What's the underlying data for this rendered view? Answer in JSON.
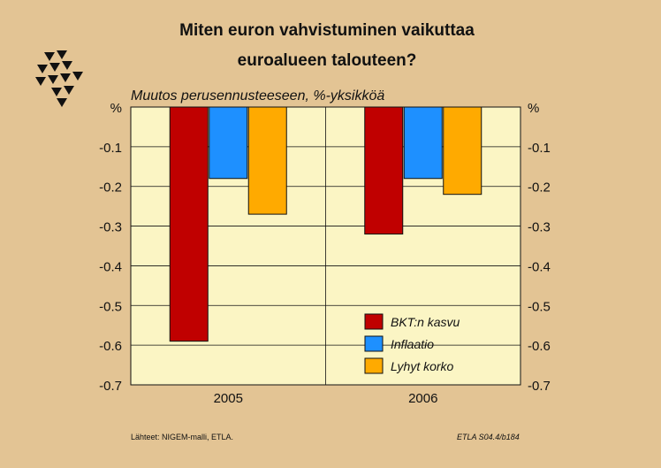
{
  "title_line1": "Miten euron vahvistuminen vaikuttaa",
  "title_line2": "euroalueen talouteen?",
  "subtitle": "Muutos perusennusteeseen, %-yksikköä",
  "source": "Lähteet:   NIGEM-malli, ETLA.",
  "code": "ETLA S04.4/b184",
  "colors": {
    "background": "#e3c494",
    "plot_background": "#fbf5c4",
    "bkt": "#c00000",
    "inflaatio": "#1e90ff",
    "korko": "#ffaa00"
  },
  "chart_data": {
    "type": "bar",
    "title": "Miten euron vahvistuminen vaikuttaa euroalueen talouteen?",
    "subtitle": "Muutos perusennusteeseen, %-yksikköä",
    "categories": [
      "2005",
      "2006"
    ],
    "series": [
      {
        "name": "BKT:n kasvu",
        "values": [
          -0.59,
          -0.32
        ],
        "color": "#c00000"
      },
      {
        "name": "Inflaatio",
        "values": [
          -0.18,
          -0.18
        ],
        "color": "#1e90ff"
      },
      {
        "name": "Lyhyt korko",
        "values": [
          -0.27,
          -0.22
        ],
        "color": "#ffaa00"
      }
    ],
    "ylim": [
      -0.7,
      0
    ],
    "yticks": [
      "%",
      "-0.1",
      "-0.2",
      "-0.3",
      "-0.4",
      "-0.5",
      "-0.6",
      "-0.7"
    ],
    "ylabel_left": "%",
    "ylabel_right": "%",
    "grid": true,
    "legend_position": "bottom-right inside plot"
  }
}
